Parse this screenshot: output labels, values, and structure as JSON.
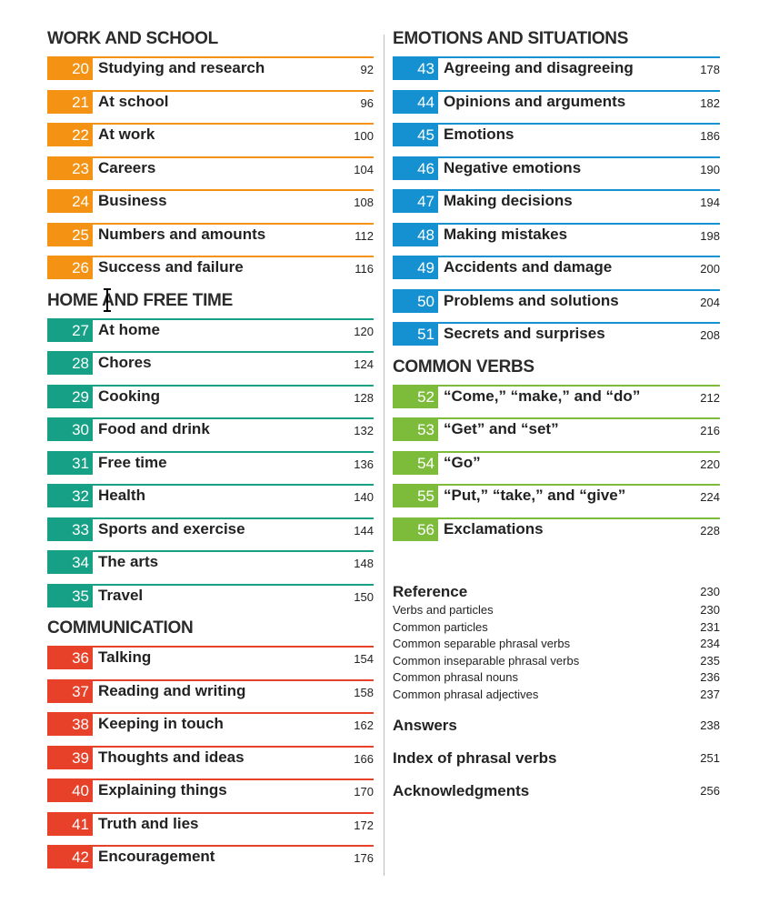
{
  "sections": {
    "work_school": {
      "title": "WORK AND SCHOOL",
      "color": "#f39213",
      "entries": [
        {
          "num": "20",
          "title": "Studying and research",
          "page": "92"
        },
        {
          "num": "21",
          "title": "At school",
          "page": "96"
        },
        {
          "num": "22",
          "title": "At work",
          "page": "100"
        },
        {
          "num": "23",
          "title": "Careers",
          "page": "104"
        },
        {
          "num": "24",
          "title": "Business",
          "page": "108"
        },
        {
          "num": "25",
          "title": "Numbers and amounts",
          "page": "112"
        },
        {
          "num": "26",
          "title": "Success and failure",
          "page": "116"
        }
      ]
    },
    "home_free_time": {
      "title": "HOME AND FREE TIME",
      "color": "#16a085",
      "entries": [
        {
          "num": "27",
          "title": "At home",
          "page": "120"
        },
        {
          "num": "28",
          "title": "Chores",
          "page": "124"
        },
        {
          "num": "29",
          "title": "Cooking",
          "page": "128"
        },
        {
          "num": "30",
          "title": "Food and drink",
          "page": "132"
        },
        {
          "num": "31",
          "title": "Free time",
          "page": "136"
        },
        {
          "num": "32",
          "title": "Health",
          "page": "140"
        },
        {
          "num": "33",
          "title": "Sports and exercise",
          "page": "144"
        },
        {
          "num": "34",
          "title": "The arts",
          "page": "148"
        },
        {
          "num": "35",
          "title": "Travel",
          "page": "150"
        }
      ]
    },
    "communication": {
      "title": "COMMUNICATION",
      "color": "#e8412a",
      "entries": [
        {
          "num": "36",
          "title": "Talking",
          "page": "154"
        },
        {
          "num": "37",
          "title": "Reading and writing",
          "page": "158"
        },
        {
          "num": "38",
          "title": "Keeping in touch",
          "page": "162"
        },
        {
          "num": "39",
          "title": "Thoughts and ideas",
          "page": "166"
        },
        {
          "num": "40",
          "title": "Explaining things",
          "page": "170"
        },
        {
          "num": "41",
          "title": "Truth and lies",
          "page": "172"
        },
        {
          "num": "42",
          "title": "Encouragement",
          "page": "176"
        }
      ]
    },
    "emotions_situations": {
      "title": "EMOTIONS AND SITUATIONS",
      "color": "#1591d2",
      "entries": [
        {
          "num": "43",
          "title": "Agreeing and disagreeing",
          "page": "178"
        },
        {
          "num": "44",
          "title": "Opinions and arguments",
          "page": "182"
        },
        {
          "num": "45",
          "title": "Emotions",
          "page": "186"
        },
        {
          "num": "46",
          "title": "Negative emotions",
          "page": "190"
        },
        {
          "num": "47",
          "title": "Making decisions",
          "page": "194"
        },
        {
          "num": "48",
          "title": "Making mistakes",
          "page": "198"
        },
        {
          "num": "49",
          "title": "Accidents and damage",
          "page": "200"
        },
        {
          "num": "50",
          "title": "Problems and solutions",
          "page": "204"
        },
        {
          "num": "51",
          "title": "Secrets and surprises",
          "page": "208"
        }
      ]
    },
    "common_verbs": {
      "title": "COMMON VERBS",
      "color": "#7dbb3a",
      "entries": [
        {
          "num": "52",
          "title": "“Come,” “make,” and “do”",
          "page": "212"
        },
        {
          "num": "53",
          "title": "“Get” and “set”",
          "page": "216"
        },
        {
          "num": "54",
          "title": "“Go”",
          "page": "220"
        },
        {
          "num": "55",
          "title": "“Put,” “take,” and “give”",
          "page": "224"
        },
        {
          "num": "56",
          "title": "Exclamations",
          "page": "228"
        }
      ]
    }
  },
  "reference": {
    "title": "Reference",
    "page": "230",
    "items": [
      {
        "title": "Verbs and particles",
        "page": "230"
      },
      {
        "title": "Common particles",
        "page": "231"
      },
      {
        "title": "Common separable phrasal verbs",
        "page": "234"
      },
      {
        "title": "Common inseparable phrasal verbs",
        "page": "235"
      },
      {
        "title": "Common phrasal nouns",
        "page": "236"
      },
      {
        "title": "Common phrasal adjectives",
        "page": "237"
      }
    ]
  },
  "answers": {
    "title": "Answers",
    "page": "238"
  },
  "index": {
    "title": "Index of phrasal verbs",
    "page": "251"
  },
  "acknowledgments": {
    "title": "Acknowledgments",
    "page": "256"
  },
  "icons": {
    "cursor": "text-cursor-icon"
  }
}
